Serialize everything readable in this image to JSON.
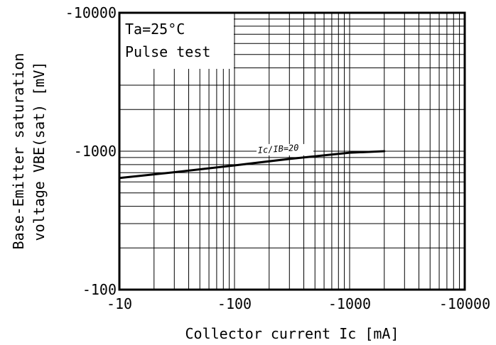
{
  "chart_data": {
    "type": "line",
    "title": "",
    "xlabel": "Collector current Ic [mA]",
    "ylabel_line1": "Base-Emitter saturation",
    "ylabel_line2": "voltage VBE(sat) [mV]",
    "x_scale": "log",
    "y_scale": "log",
    "xlim": [
      -10,
      -10000
    ],
    "ylim": [
      -100,
      -10000
    ],
    "x_ticks": [
      "-10",
      "-100",
      "-1000",
      "-10000"
    ],
    "y_ticks": [
      "-10000",
      "-1000",
      "-100"
    ],
    "grid": true,
    "legend": {
      "placement": "top-left",
      "lines": [
        "Ta=25°C",
        "Pulse test"
      ]
    },
    "series": [
      {
        "name": "Ic/IB=20",
        "x": [
          -10,
          -30,
          -100,
          -300,
          -1000,
          -2000
        ],
        "y": [
          -640,
          -705,
          -790,
          -880,
          -975,
          -1000
        ]
      }
    ]
  }
}
